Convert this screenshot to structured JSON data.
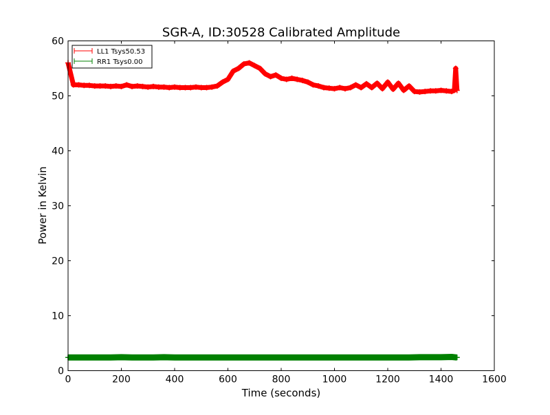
{
  "chart_data": {
    "type": "line",
    "title": "SGR-A, ID:30528 Calibrated Amplitude",
    "xlabel": "Time (seconds)",
    "ylabel": "Power in Kelvin",
    "xlim": [
      0,
      1600
    ],
    "ylim": [
      0,
      60
    ],
    "xticks": [
      0,
      200,
      400,
      600,
      800,
      1000,
      1200,
      1400,
      1600
    ],
    "yticks": [
      0,
      10,
      20,
      30,
      40,
      50,
      60
    ],
    "grid": false,
    "legend_placement": "top-left",
    "series": [
      {
        "name": "LL1 Tsys50.53",
        "color": "#ff0000",
        "marker": "+",
        "x": [
          0,
          20,
          40,
          60,
          80,
          100,
          120,
          140,
          160,
          180,
          200,
          220,
          240,
          260,
          280,
          300,
          320,
          340,
          360,
          380,
          400,
          420,
          440,
          460,
          480,
          500,
          520,
          540,
          560,
          580,
          600,
          620,
          640,
          660,
          680,
          700,
          720,
          740,
          760,
          780,
          800,
          820,
          840,
          860,
          880,
          900,
          920,
          940,
          960,
          980,
          1000,
          1020,
          1040,
          1060,
          1080,
          1100,
          1120,
          1140,
          1160,
          1180,
          1200,
          1220,
          1240,
          1260,
          1280,
          1300,
          1320,
          1340,
          1360,
          1380,
          1400,
          1420,
          1440,
          1450,
          1455,
          1460
        ],
        "y": [
          56,
          52.0,
          52.0,
          51.9,
          51.9,
          51.8,
          51.8,
          51.8,
          51.7,
          51.8,
          51.7,
          52.0,
          51.7,
          51.8,
          51.7,
          51.6,
          51.7,
          51.6,
          51.6,
          51.5,
          51.6,
          51.5,
          51.5,
          51.5,
          51.6,
          51.5,
          51.5,
          51.6,
          51.8,
          52.5,
          53.0,
          54.5,
          55.0,
          55.8,
          56.0,
          55.5,
          55.0,
          54.0,
          53.5,
          53.8,
          53.2,
          53.0,
          53.2,
          53.0,
          52.8,
          52.5,
          52.0,
          51.8,
          51.5,
          51.4,
          51.3,
          51.5,
          51.3,
          51.5,
          52.0,
          51.5,
          52.2,
          51.5,
          52.3,
          51.3,
          52.5,
          51.2,
          52.3,
          51.0,
          51.8,
          50.8,
          50.7,
          50.8,
          50.9,
          50.9,
          51.0,
          50.9,
          50.8,
          51.0,
          55.0,
          51.0
        ]
      },
      {
        "name": "RR1 Tsys0.00",
        "color": "#008000",
        "marker": "+",
        "x": [
          0,
          40,
          80,
          120,
          160,
          200,
          240,
          280,
          320,
          360,
          400,
          440,
          480,
          520,
          560,
          600,
          640,
          680,
          720,
          760,
          800,
          840,
          880,
          920,
          960,
          1000,
          1040,
          1080,
          1120,
          1160,
          1200,
          1240,
          1280,
          1320,
          1360,
          1400,
          1440,
          1460
        ],
        "y": [
          2.4,
          2.4,
          2.4,
          2.4,
          2.4,
          2.45,
          2.4,
          2.4,
          2.4,
          2.45,
          2.4,
          2.4,
          2.4,
          2.4,
          2.4,
          2.4,
          2.4,
          2.4,
          2.4,
          2.4,
          2.4,
          2.4,
          2.4,
          2.4,
          2.4,
          2.4,
          2.4,
          2.4,
          2.4,
          2.4,
          2.4,
          2.4,
          2.4,
          2.45,
          2.45,
          2.45,
          2.5,
          2.4
        ]
      }
    ]
  }
}
